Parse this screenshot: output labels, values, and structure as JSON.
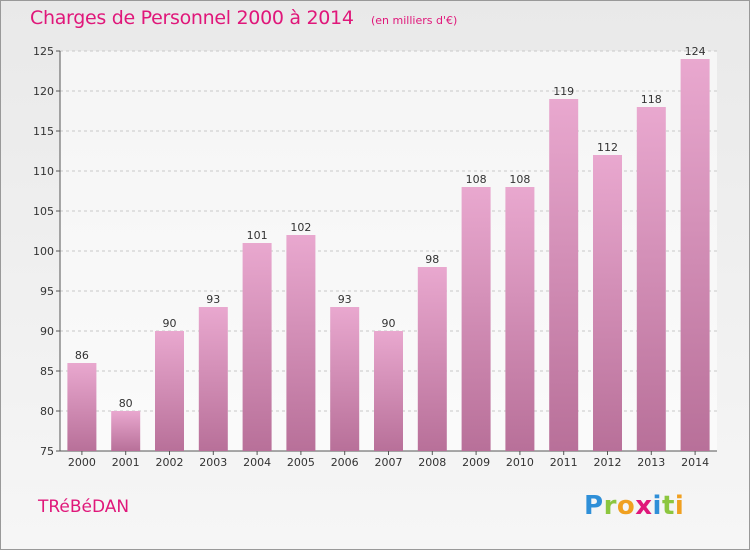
{
  "header": {
    "title": "Charges de Personnel 2000 à 2014",
    "subtitle": "(en milliers d'€)"
  },
  "footer": {
    "commune": "TRéBéDAN",
    "logo_letters": [
      {
        "ch": "P",
        "color": "#2f8fd8"
      },
      {
        "ch": "r",
        "color": "#8cc63f"
      },
      {
        "ch": "o",
        "color": "#f0a020"
      },
      {
        "ch": "x",
        "color": "#e0177a"
      },
      {
        "ch": "i",
        "color": "#2f8fd8"
      },
      {
        "ch": "t",
        "color": "#8cc63f"
      },
      {
        "ch": "i",
        "color": "#f0a020"
      }
    ]
  },
  "colors": {
    "bar_top": "#e9a8cf",
    "bar_bottom": "#b87099",
    "accent": "#e0177a"
  },
  "chart_data": {
    "type": "bar",
    "categories": [
      "2000",
      "2001",
      "2002",
      "2003",
      "2004",
      "2005",
      "2006",
      "2007",
      "2008",
      "2009",
      "2010",
      "2011",
      "2012",
      "2013",
      "2014"
    ],
    "values": [
      86,
      80,
      90,
      93,
      101,
      102,
      93,
      90,
      98,
      108,
      108,
      119,
      112,
      118,
      124
    ],
    "ylim": [
      75,
      125
    ],
    "yticks": [
      75,
      80,
      85,
      90,
      95,
      100,
      105,
      110,
      115,
      120,
      125
    ],
    "grid": "horizontal-dashed"
  }
}
